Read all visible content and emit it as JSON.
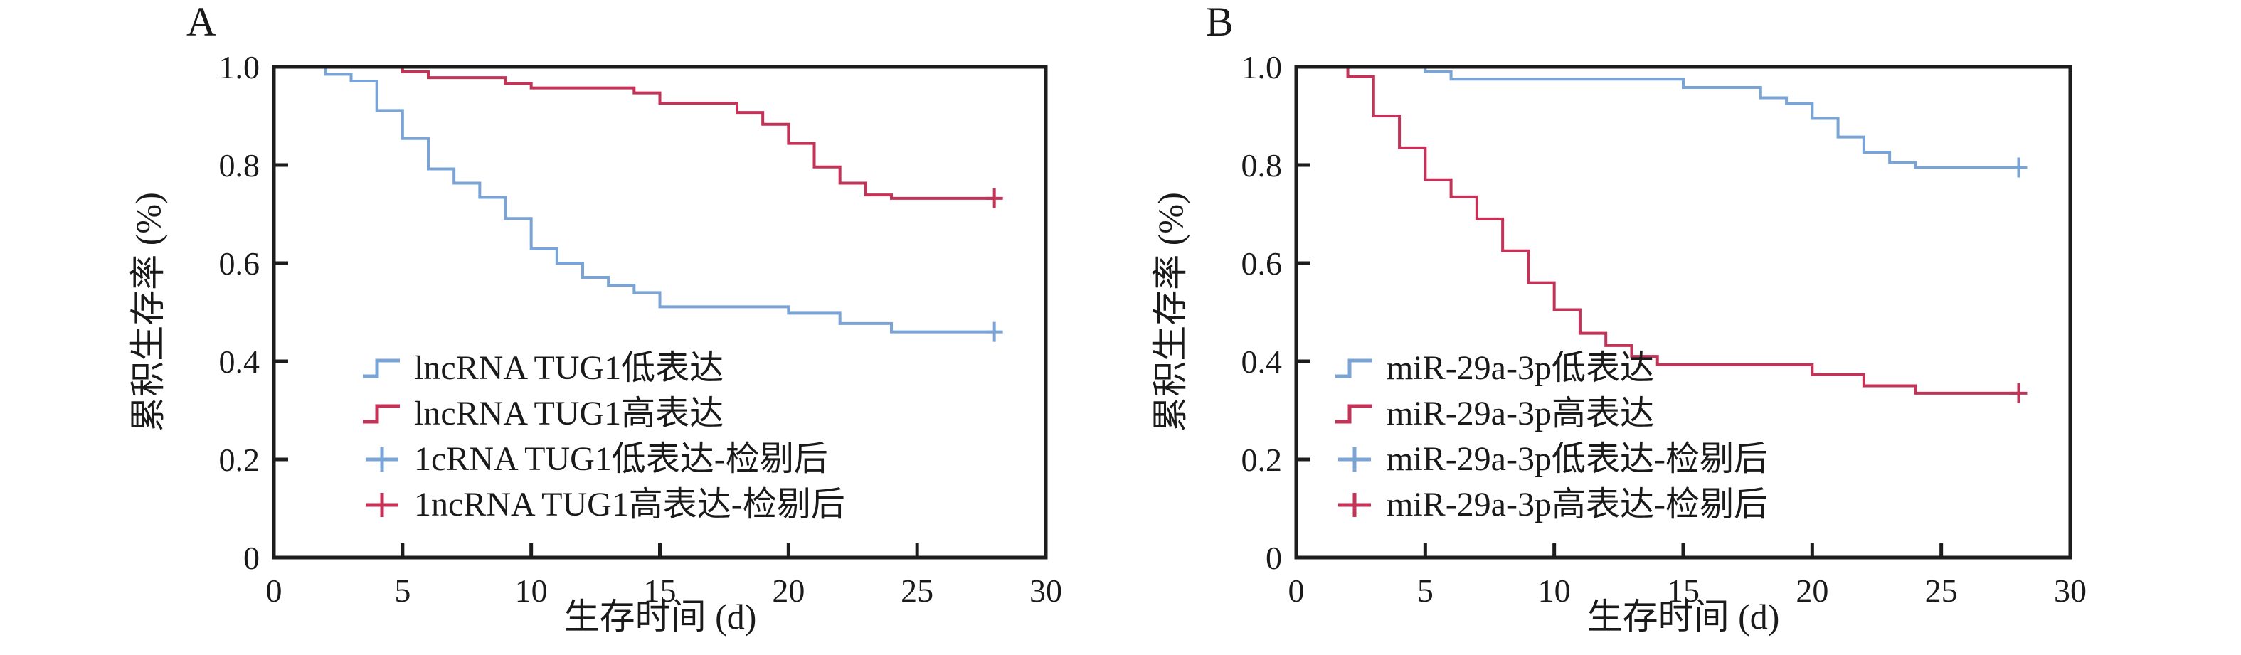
{
  "figure": {
    "background": "#ffffff",
    "axis_color": "#1c1c1c",
    "accent_blue": "#7aa4d6",
    "accent_red": "#c23357",
    "panels": [
      {
        "panel_label": "A",
        "ylabel": "累积生存率 (%)",
        "xlabel": "生存时间 (d)",
        "x_tick_labels": [
          "0",
          "5",
          "10",
          "15",
          "20",
          "25",
          "30"
        ],
        "y_tick_labels": [
          "1.0",
          "0.8",
          "0.6",
          "0.4",
          "0.2",
          "0"
        ],
        "legend": [
          {
            "label": "lncRNA TUG1低表达",
            "marker": "step-icon",
            "color": "#7aa4d6"
          },
          {
            "label": "lncRNA TUG1高表达",
            "marker": "step-icon",
            "color": "#c23357"
          },
          {
            "label": "1cRNA TUG1低表达-检剔后",
            "marker": "plus-icon",
            "color": "#7aa4d6"
          },
          {
            "label": "1ncRNA TUG1高表达-检剔后",
            "marker": "plus-icon",
            "color": "#c23357"
          }
        ]
      },
      {
        "panel_label": "B",
        "ylabel": "累积生存率 (%)",
        "xlabel": "生存时间 (d)",
        "x_tick_labels": [
          "0",
          "5",
          "10",
          "15",
          "20",
          "25",
          "30"
        ],
        "y_tick_labels": [
          "1.0",
          "0.8",
          "0.6",
          "0.4",
          "0.2",
          "0"
        ],
        "legend": [
          {
            "label": "miR-29a-3p低表达",
            "marker": "step-icon",
            "color": "#7aa4d6"
          },
          {
            "label": "miR-29a-3p高表达",
            "marker": "step-icon",
            "color": "#c23357"
          },
          {
            "label": "miR-29a-3p低表达-检剔后",
            "marker": "plus-icon",
            "color": "#7aa4d6"
          },
          {
            "label": "miR-29a-3p高表达-检剔后",
            "marker": "plus-icon",
            "color": "#c23357"
          }
        ]
      }
    ]
  },
  "chart_data": [
    {
      "type": "line",
      "subtype": "kaplan_meier_step",
      "panel": "A",
      "title": "",
      "xlabel": "生存时间 (d)",
      "ylabel": "累积生存率 (%)",
      "xlim": [
        0,
        30
      ],
      "ylim": [
        0,
        1.0
      ],
      "x_ticks": [
        0,
        5,
        10,
        15,
        20,
        25,
        30
      ],
      "y_ticks": [
        1.0,
        0.8,
        0.6,
        0.4,
        0.2,
        0
      ],
      "grid": false,
      "legend_position": "inside-lower-left",
      "series": [
        {
          "name": "lncRNA TUG1低表达",
          "color": "#7aa4d6",
          "points": [
            [
              0,
              1.0
            ],
            [
              2,
              0.985
            ],
            [
              3,
              0.971
            ],
            [
              4,
              0.911
            ],
            [
              5,
              0.854
            ],
            [
              6,
              0.792
            ],
            [
              7,
              0.763
            ],
            [
              8,
              0.734
            ],
            [
              9,
              0.691
            ],
            [
              10,
              0.629
            ],
            [
              11,
              0.6
            ],
            [
              12,
              0.571
            ],
            [
              13,
              0.555
            ],
            [
              14,
              0.54
            ],
            [
              15,
              0.511
            ],
            [
              20,
              0.498
            ],
            [
              22,
              0.477
            ],
            [
              24,
              0.46
            ],
            [
              28,
              0.46
            ]
          ],
          "censor_marks": [
            [
              28,
              0.46
            ]
          ]
        },
        {
          "name": "lncRNA TUG1高表达",
          "color": "#c23357",
          "points": [
            [
              0,
              1.0
            ],
            [
              5,
              0.99
            ],
            [
              6,
              0.978
            ],
            [
              9,
              0.966
            ],
            [
              10,
              0.957
            ],
            [
              14,
              0.947
            ],
            [
              15,
              0.926
            ],
            [
              18,
              0.907
            ],
            [
              19,
              0.883
            ],
            [
              20,
              0.844
            ],
            [
              21,
              0.796
            ],
            [
              22,
              0.763
            ],
            [
              23,
              0.739
            ],
            [
              24,
              0.732
            ],
            [
              28,
              0.732
            ]
          ],
          "censor_marks": [
            [
              28,
              0.732
            ]
          ]
        }
      ]
    },
    {
      "type": "line",
      "subtype": "kaplan_meier_step",
      "panel": "B",
      "title": "",
      "xlabel": "生存时间 (d)",
      "ylabel": "累积生存率 (%)",
      "xlim": [
        0,
        30
      ],
      "ylim": [
        0,
        1.0
      ],
      "x_ticks": [
        0,
        5,
        10,
        15,
        20,
        25,
        30
      ],
      "y_ticks": [
        1.0,
        0.8,
        0.6,
        0.4,
        0.2,
        0
      ],
      "grid": false,
      "legend_position": "inside-lower-left",
      "series": [
        {
          "name": "miR-29a-3p低表达",
          "color": "#7aa4d6",
          "points": [
            [
              0,
              1.0
            ],
            [
              5,
              0.99
            ],
            [
              6,
              0.975
            ],
            [
              15,
              0.958
            ],
            [
              18,
              0.937
            ],
            [
              19,
              0.925
            ],
            [
              20,
              0.895
            ],
            [
              21,
              0.857
            ],
            [
              22,
              0.826
            ],
            [
              23,
              0.805
            ],
            [
              24,
              0.795
            ],
            [
              28,
              0.795
            ]
          ],
          "censor_marks": [
            [
              28,
              0.795
            ]
          ]
        },
        {
          "name": "miR-29a-3p高表达",
          "color": "#c23357",
          "points": [
            [
              0,
              1.0
            ],
            [
              2,
              0.98
            ],
            [
              3,
              0.9
            ],
            [
              4,
              0.835
            ],
            [
              5,
              0.77
            ],
            [
              6,
              0.735
            ],
            [
              7,
              0.69
            ],
            [
              8,
              0.625
            ],
            [
              9,
              0.56
            ],
            [
              10,
              0.505
            ],
            [
              11,
              0.457
            ],
            [
              12,
              0.432
            ],
            [
              13,
              0.41
            ],
            [
              14,
              0.393
            ],
            [
              20,
              0.373
            ],
            [
              22,
              0.35
            ],
            [
              24,
              0.335
            ],
            [
              28,
              0.335
            ]
          ],
          "censor_marks": [
            [
              28,
              0.335
            ]
          ]
        }
      ]
    }
  ]
}
